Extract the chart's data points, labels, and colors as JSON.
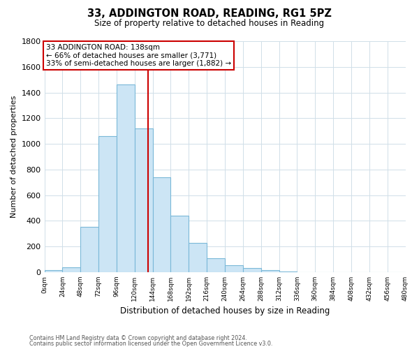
{
  "title": "33, ADDINGTON ROAD, READING, RG1 5PZ",
  "subtitle": "Size of property relative to detached houses in Reading",
  "xlabel": "Distribution of detached houses by size in Reading",
  "ylabel": "Number of detached properties",
  "bin_edges": [
    0,
    24,
    48,
    72,
    96,
    120,
    144,
    168,
    192,
    216,
    240,
    264,
    288,
    312,
    336,
    360,
    384,
    408,
    432,
    456,
    480
  ],
  "bin_counts": [
    18,
    35,
    355,
    1060,
    1465,
    1120,
    740,
    440,
    228,
    110,
    55,
    30,
    18,
    5,
    2,
    1,
    0,
    0,
    0,
    0
  ],
  "bar_color": "#cce5f5",
  "bar_edge_color": "#7ab8d8",
  "property_size": 138,
  "vline_color": "#cc0000",
  "annotation_box_edge_color": "#cc0000",
  "annotation_text_line1": "33 ADDINGTON ROAD: 138sqm",
  "annotation_text_line2": "← 66% of detached houses are smaller (3,771)",
  "annotation_text_line3": "33% of semi-detached houses are larger (1,882) →",
  "ylim": [
    0,
    1800
  ],
  "yticks": [
    0,
    200,
    400,
    600,
    800,
    1000,
    1200,
    1400,
    1600,
    1800
  ],
  "xtick_labels": [
    "0sqm",
    "24sqm",
    "48sqm",
    "72sqm",
    "96sqm",
    "120sqm",
    "144sqm",
    "168sqm",
    "192sqm",
    "216sqm",
    "240sqm",
    "264sqm",
    "288sqm",
    "312sqm",
    "336sqm",
    "360sqm",
    "384sqm",
    "408sqm",
    "432sqm",
    "456sqm",
    "480sqm"
  ],
  "footer_line1": "Contains HM Land Registry data © Crown copyright and database right 2024.",
  "footer_line2": "Contains public sector information licensed under the Open Government Licence v3.0.",
  "background_color": "#ffffff",
  "grid_color": "#d0dfe8"
}
